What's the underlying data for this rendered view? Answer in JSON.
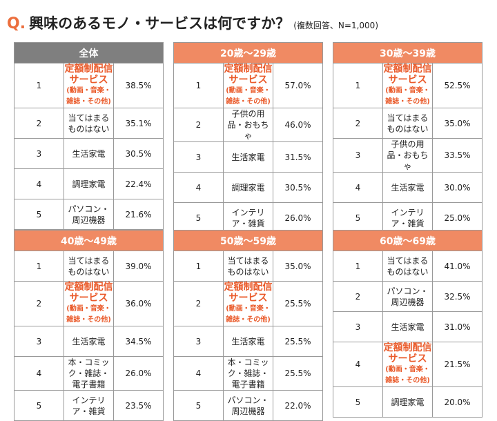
{
  "title": {
    "q": "Q.",
    "main": "興味のあるモノ・サービスは何ですか？",
    "note": "(複数回答、N=1,000)"
  },
  "colors": {
    "header_all": "#7f7f7f",
    "header_age": "#f08a63",
    "highlight": "#ea5a2a"
  },
  "panels": [
    {
      "header": "全体",
      "rows": [
        {
          "rank": "1",
          "item": "定額制配信サービス",
          "sub": "(動画・音楽・雑誌・その他)",
          "pct": "38.5%",
          "hl": true
        },
        {
          "rank": "2",
          "item": "当てはまるものはない",
          "sub": "",
          "pct": "35.1%",
          "hl": false
        },
        {
          "rank": "3",
          "item": "生活家電",
          "sub": "",
          "pct": "30.5%",
          "hl": false
        },
        {
          "rank": "4",
          "item": "調理家電",
          "sub": "",
          "pct": "22.4%",
          "hl": false
        },
        {
          "rank": "5",
          "item": "パソコン・周辺機器",
          "sub": "",
          "pct": "21.6%",
          "hl": false
        }
      ]
    },
    {
      "header": "20歳〜29歳",
      "rows": [
        {
          "rank": "1",
          "item": "定額制配信サービス",
          "sub": "(動画・音楽・雑誌・その他)",
          "pct": "57.0%",
          "hl": true
        },
        {
          "rank": "2",
          "item": "子供の用品・おもちゃ",
          "sub": "",
          "pct": "46.0%",
          "hl": false
        },
        {
          "rank": "3",
          "item": "生活家電",
          "sub": "",
          "pct": "31.5%",
          "hl": false
        },
        {
          "rank": "4",
          "item": "調理家電",
          "sub": "",
          "pct": "30.5%",
          "hl": false
        },
        {
          "rank": "5",
          "item": "インテリア・雑貨",
          "sub": "",
          "pct": "26.0%",
          "hl": false
        }
      ]
    },
    {
      "header": "30歳〜39歳",
      "rows": [
        {
          "rank": "1",
          "item": "定額制配信サービス",
          "sub": "(動画・音楽・雑誌・その他)",
          "pct": "52.5%",
          "hl": true
        },
        {
          "rank": "2",
          "item": "当てはまるものはない",
          "sub": "",
          "pct": "35.0%",
          "hl": false
        },
        {
          "rank": "3",
          "item": "子供の用品・おもちゃ",
          "sub": "",
          "pct": "33.5%",
          "hl": false
        },
        {
          "rank": "4",
          "item": "生活家電",
          "sub": "",
          "pct": "30.0%",
          "hl": false
        },
        {
          "rank": "5",
          "item": "インテリア・雑貨",
          "sub": "",
          "pct": "25.0%",
          "hl": false
        }
      ]
    },
    {
      "header": "40歳〜49歳",
      "rows": [
        {
          "rank": "1",
          "item": "当てはまるものはない",
          "sub": "",
          "pct": "39.0%",
          "hl": false
        },
        {
          "rank": "2",
          "item": "定額制配信サービス",
          "sub": "(動画・音楽・雑誌・その他)",
          "pct": "36.0%",
          "hl": true
        },
        {
          "rank": "3",
          "item": "生活家電",
          "sub": "",
          "pct": "34.5%",
          "hl": false
        },
        {
          "rank": "4",
          "item": "本・コミック・雑誌・",
          "sub": "電子書籍",
          "pct": "26.0%",
          "hl": false
        },
        {
          "rank": "5",
          "item": "インテリア・雑貨",
          "sub": "",
          "pct": "23.5%",
          "hl": false
        }
      ]
    },
    {
      "header": "50歳〜59歳",
      "rows": [
        {
          "rank": "1",
          "item": "当てはまるものはない",
          "sub": "",
          "pct": "35.0%",
          "hl": false
        },
        {
          "rank": "2",
          "item": "定額制配信サービス",
          "sub": "(動画・音楽・雑誌・その他)",
          "pct": "25.5%",
          "hl": true
        },
        {
          "rank": "3",
          "item": "生活家電",
          "sub": "",
          "pct": "25.5%",
          "hl": false
        },
        {
          "rank": "4",
          "item": "本・コミック・雑誌・",
          "sub": "電子書籍",
          "pct": "25.5%",
          "hl": false
        },
        {
          "rank": "5",
          "item": "パソコン・周辺機器",
          "sub": "",
          "pct": "22.0%",
          "hl": false
        }
      ]
    },
    {
      "header": "60歳〜69歳",
      "rows": [
        {
          "rank": "1",
          "item": "当てはまるものはない",
          "sub": "",
          "pct": "41.0%",
          "hl": false
        },
        {
          "rank": "2",
          "item": "パソコン・周辺機器",
          "sub": "",
          "pct": "32.5%",
          "hl": false
        },
        {
          "rank": "3",
          "item": "生活家電",
          "sub": "",
          "pct": "31.0%",
          "hl": false
        },
        {
          "rank": "4",
          "item": "定額制配信サービス",
          "sub": "(動画・音楽・雑誌・その他)",
          "pct": "21.5%",
          "hl": true
        },
        {
          "rank": "5",
          "item": "調理家電",
          "sub": "",
          "pct": "20.0%",
          "hl": false
        }
      ]
    }
  ]
}
